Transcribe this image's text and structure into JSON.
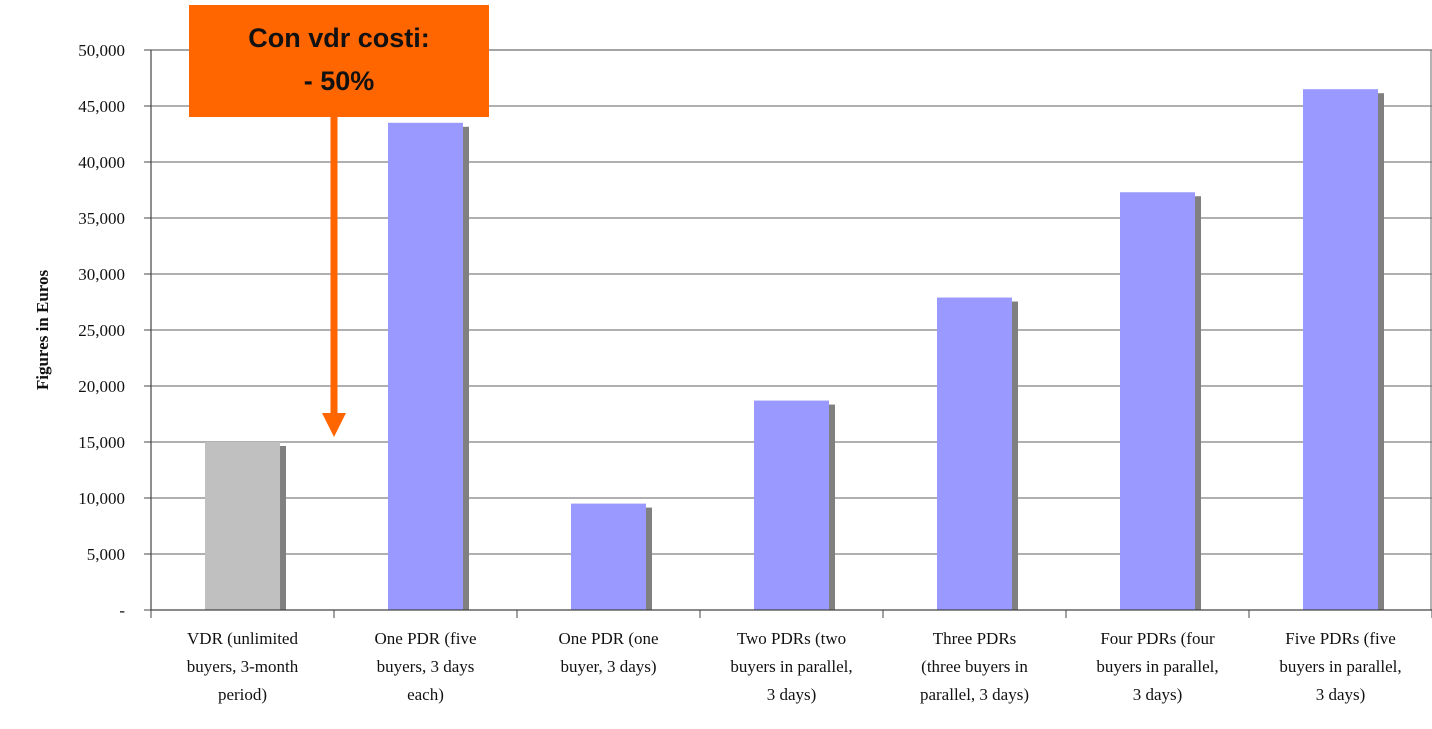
{
  "chart_data": {
    "type": "bar",
    "title": "",
    "xlabel": "",
    "ylabel": "Figures in Euros",
    "ylim": [
      0,
      50000
    ],
    "yticks": [
      0,
      5000,
      10000,
      15000,
      20000,
      25000,
      30000,
      35000,
      40000,
      45000,
      50000
    ],
    "ytick_labels": [
      "-",
      "5,000",
      "10,000",
      "15,000",
      "20,000",
      "25,000",
      "30,000",
      "35,000",
      "40,000",
      "45,000",
      "50,000"
    ],
    "grid": true,
    "legend": "none",
    "categories": [
      [
        "VDR (unlimited",
        "buyers, 3-month",
        "period)"
      ],
      [
        "One PDR (five",
        "buyers, 3 days",
        "each)"
      ],
      [
        "One PDR (one",
        "buyer, 3 days)"
      ],
      [
        "Two PDRs (two",
        "buyers in parallel,",
        "3 days)"
      ],
      [
        "Three PDRs",
        "(three buyers in",
        "parallel, 3 days)"
      ],
      [
        "Four PDRs (four",
        "buyers in parallel,",
        "3 days)"
      ],
      [
        "Five PDRs (five",
        "buyers in parallel,",
        "3 days)"
      ]
    ],
    "values": [
      15000,
      43500,
      9500,
      18700,
      27900,
      37300,
      46500
    ],
    "colors": {
      "vdr": "#c0c0c0",
      "pdr": "#9999ff",
      "shadow": "#808080",
      "grid": "#808080",
      "annotation_box": "#ff6600",
      "annotation_arrow": "#ff6600"
    },
    "bar_colors": [
      "vdr",
      "pdr",
      "pdr",
      "pdr",
      "pdr",
      "pdr",
      "pdr"
    ],
    "annotation": {
      "lines": [
        "Con vdr costi:",
        "- 50%"
      ],
      "points_to_value": 15000
    }
  }
}
